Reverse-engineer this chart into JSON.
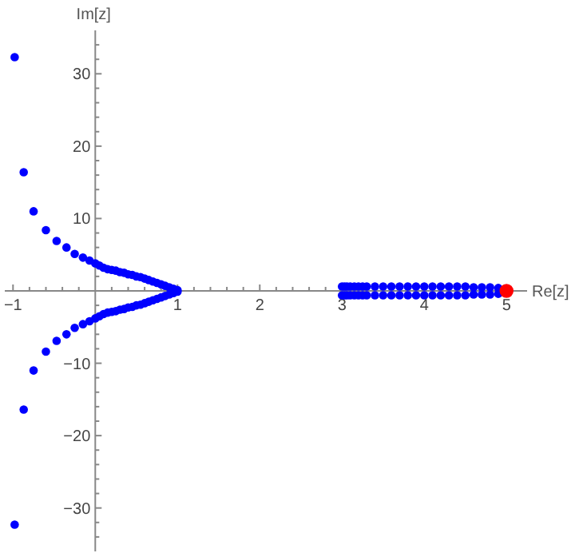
{
  "chart_data": {
    "type": "scatter",
    "xlabel": "Re[z]",
    "ylabel": "Im[z]",
    "xlim": [
      -1.1,
      5.25
    ],
    "ylim": [
      -36,
      36
    ],
    "marker": "circle",
    "grid": false,
    "xticks": [
      -1,
      {
        "value": -0.8,
        "label": null
      },
      {
        "value": -0.6,
        "label": null
      },
      {
        "value": -0.4,
        "label": null
      },
      {
        "value": -0.2,
        "label": null
      },
      {
        "value": 0.2,
        "label": null
      },
      {
        "value": 0.4,
        "label": null
      },
      {
        "value": 0.6,
        "label": null
      },
      {
        "value": 0.8,
        "label": null
      },
      1,
      {
        "value": 1.2,
        "label": null
      },
      {
        "value": 1.4,
        "label": null
      },
      {
        "value": 1.6,
        "label": null
      },
      {
        "value": 1.8,
        "label": null
      },
      2,
      {
        "value": 2.2,
        "label": null
      },
      {
        "value": 2.4,
        "label": null
      },
      {
        "value": 2.6,
        "label": null
      },
      {
        "value": 2.8,
        "label": null
      },
      3,
      {
        "value": 3.2,
        "label": null
      },
      {
        "value": 3.4,
        "label": null
      },
      {
        "value": 3.6,
        "label": null
      },
      {
        "value": 3.8,
        "label": null
      },
      4,
      {
        "value": 4.2,
        "label": null
      },
      {
        "value": 4.4,
        "label": null
      },
      {
        "value": 4.6,
        "label": null
      },
      {
        "value": 4.8,
        "label": null
      },
      5
    ],
    "yticks": [
      -30,
      -20,
      -10,
      10,
      20,
      30,
      {
        "value": -34,
        "label": null
      },
      {
        "value": -32,
        "label": null
      },
      {
        "value": -28,
        "label": null
      },
      {
        "value": -26,
        "label": null
      },
      {
        "value": -24,
        "label": null
      },
      {
        "value": -22,
        "label": null
      },
      {
        "value": -18,
        "label": null
      },
      {
        "value": -16,
        "label": null
      },
      {
        "value": -14,
        "label": null
      },
      {
        "value": -12,
        "label": null
      },
      {
        "value": -8,
        "label": null
      },
      {
        "value": -6,
        "label": null
      },
      {
        "value": -4,
        "label": null
      },
      {
        "value": -2,
        "label": null
      },
      {
        "value": 2,
        "label": null
      },
      {
        "value": 4,
        "label": null
      },
      {
        "value": 6,
        "label": null
      },
      {
        "value": 8,
        "label": null
      },
      {
        "value": 12,
        "label": null
      },
      {
        "value": 14,
        "label": null
      },
      {
        "value": 16,
        "label": null
      },
      {
        "value": 18,
        "label": null
      },
      {
        "value": 22,
        "label": null
      },
      {
        "value": 24,
        "label": null
      },
      {
        "value": 26,
        "label": null
      },
      {
        "value": 28,
        "label": null
      },
      {
        "value": 32,
        "label": null
      },
      {
        "value": 34,
        "label": null
      }
    ],
    "series": [
      {
        "color": "#0000ff",
        "x": [
          -0.98,
          -0.87,
          -0.75,
          -0.6,
          -0.47,
          -0.35,
          -0.25,
          -0.15,
          -0.07,
          0,
          0.05,
          0.1,
          0.15,
          0.2,
          0.25,
          0.3,
          0.35,
          0.4,
          0.45,
          0.5,
          0.55,
          0.6,
          0.65,
          0.7,
          0.75,
          0.8,
          0.85,
          0.9,
          0.95,
          1.0,
          -0.98,
          -0.87,
          -0.75,
          -0.6,
          -0.47,
          -0.35,
          -0.25,
          -0.15,
          -0.07,
          0,
          0.05,
          0.1,
          0.15,
          0.2,
          0.25,
          0.3,
          0.35,
          0.4,
          0.45,
          0.5,
          0.55,
          0.6,
          0.65,
          0.7,
          0.75,
          0.8,
          0.85,
          0.9,
          0.95,
          1.0,
          3.0,
          3.03,
          3.06,
          3.1,
          3.15,
          3.2,
          3.25,
          3.3,
          3.4,
          3.5,
          3.6,
          3.7,
          3.8,
          3.9,
          4.0,
          4.1,
          4.2,
          4.3,
          4.4,
          4.5,
          4.6,
          4.7,
          4.8,
          4.9,
          3.0,
          3.03,
          3.06,
          3.1,
          3.15,
          3.2,
          3.25,
          3.3,
          3.4,
          3.5,
          3.6,
          3.7,
          3.8,
          3.9,
          4.0,
          4.1,
          4.2,
          4.3,
          4.4,
          4.5,
          4.6,
          4.7,
          4.8,
          4.9
        ],
        "values": [
          32.3,
          16.4,
          11,
          8.4,
          6.9,
          6,
          5.1,
          4.6,
          4.2,
          3.8,
          3.5,
          3.2,
          3.0,
          2.9,
          2.8,
          2.6,
          2.5,
          2.3,
          2.2,
          2.0,
          1.9,
          1.7,
          1.5,
          1.3,
          1.1,
          0.9,
          0.7,
          0.5,
          0.3,
          0.1,
          -32.3,
          -16.4,
          -11,
          -8.4,
          -6.9,
          -6,
          -5.1,
          -4.6,
          -4.2,
          -3.8,
          -3.5,
          -3.2,
          -3.0,
          -2.9,
          -2.8,
          -2.6,
          -2.5,
          -2.3,
          -2.2,
          -2.0,
          -1.9,
          -1.7,
          -1.5,
          -1.3,
          -1.1,
          -0.9,
          -0.7,
          -0.5,
          -0.3,
          -0.1,
          0.6,
          0.6,
          0.6,
          0.6,
          0.6,
          0.6,
          0.6,
          0.6,
          0.6,
          0.6,
          0.6,
          0.6,
          0.6,
          0.6,
          0.6,
          0.6,
          0.6,
          0.6,
          0.6,
          0.6,
          0.5,
          0.5,
          0.5,
          0.4,
          -0.6,
          -0.6,
          -0.6,
          -0.6,
          -0.6,
          -0.6,
          -0.6,
          -0.6,
          -0.6,
          -0.6,
          -0.6,
          -0.6,
          -0.6,
          -0.6,
          -0.6,
          -0.6,
          -0.6,
          -0.6,
          -0.6,
          -0.6,
          -0.5,
          -0.5,
          -0.5,
          -0.4
        ]
      },
      {
        "color": "#ff0000",
        "x": [
          5
        ],
        "values": [
          0
        ]
      }
    ]
  }
}
